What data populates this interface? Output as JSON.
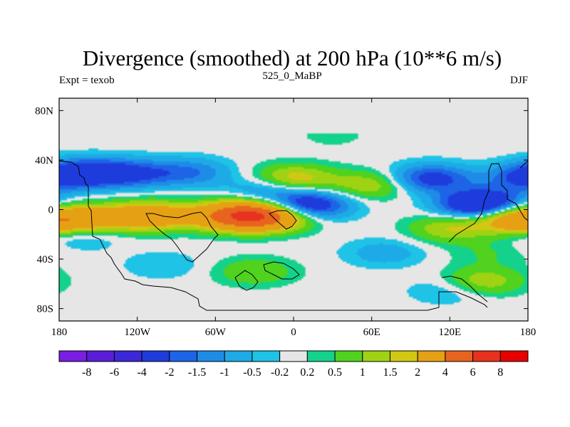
{
  "title": "Divergence (smoothed) at 200 hPa (10**6 m/s)",
  "subtitle_left": "Expt = texob",
  "subtitle_center": "525_0_MaBP",
  "subtitle_right": "DJF",
  "chart_data": {
    "type": "heatmap",
    "projection": "cylindrical equidistant",
    "x_range": [
      -180,
      180
    ],
    "y_range": [
      -90,
      90
    ],
    "x_ticks": [
      {
        "value": -180,
        "label": "180"
      },
      {
        "value": -120,
        "label": "120W"
      },
      {
        "value": -60,
        "label": "60W"
      },
      {
        "value": 0,
        "label": "0"
      },
      {
        "value": 60,
        "label": "60E"
      },
      {
        "value": 120,
        "label": "120E"
      },
      {
        "value": 180,
        "label": "180"
      }
    ],
    "y_ticks": [
      {
        "value": 80,
        "label": "80N"
      },
      {
        "value": 40,
        "label": "40N"
      },
      {
        "value": 0,
        "label": "0"
      },
      {
        "value": -40,
        "label": "40S"
      },
      {
        "value": -80,
        "label": "80S"
      }
    ],
    "contour_levels": [
      -8,
      -6,
      -4,
      -2,
      -1.5,
      -1,
      -0.5,
      -0.2,
      0.2,
      0.5,
      1,
      1.5,
      2,
      4,
      6,
      8
    ],
    "legend_labels": [
      "-8",
      "-6",
      "-4",
      "-2",
      "-1.5",
      "-1",
      "-0.5",
      "-0.2",
      "0.2",
      "0.5",
      "1",
      "1.5",
      "2",
      "4",
      "6",
      "8"
    ],
    "colors": [
      "#7a1ee0",
      "#5a1ed8",
      "#3c28d8",
      "#1e3cdc",
      "#1e64e6",
      "#1e8ce6",
      "#1eaae6",
      "#1ec3e6",
      "#e6e6e6",
      "#14d28c",
      "#50d21e",
      "#a0d214",
      "#d2c814",
      "#e6a014",
      "#e6641e",
      "#e6321e",
      "#e60000"
    ],
    "features": [
      {
        "lon": -160,
        "lat": 30,
        "value": -2.5
      },
      {
        "lon": -125,
        "lat": 29,
        "value": -2
      },
      {
        "lon": -80,
        "lat": 30,
        "value": -1.5
      },
      {
        "lon": -20,
        "lat": 16,
        "value": -1.2
      },
      {
        "lon": 10,
        "lat": 3,
        "value": -3.5
      },
      {
        "lon": 105,
        "lat": 25,
        "value": -2.5
      },
      {
        "lon": 145,
        "lat": 4,
        "value": -4.5
      },
      {
        "lon": 175,
        "lat": 25,
        "value": -1.5
      },
      {
        "lon": -165,
        "lat": -20,
        "value": -1
      },
      {
        "lon": -145,
        "lat": -7,
        "value": 1.5
      },
      {
        "lon": -110,
        "lat": -5,
        "value": 3
      },
      {
        "lon": -60,
        "lat": -5,
        "value": 1.5
      },
      {
        "lon": -35,
        "lat": -5,
        "value": 5
      },
      {
        "lon": -10,
        "lat": -5,
        "value": 2.5
      },
      {
        "lon": 0,
        "lat": 25,
        "value": 2
      },
      {
        "lon": 60,
        "lat": 20,
        "value": 1.5
      },
      {
        "lon": 120,
        "lat": -15,
        "value": 1.5
      },
      {
        "lon": 145,
        "lat": -58,
        "value": 1.5
      },
      {
        "lon": 165,
        "lat": -5,
        "value": 2.5
      },
      {
        "lon": -175,
        "lat": -10,
        "value": 2.5
      },
      {
        "lon": -100,
        "lat": -45,
        "value": -0.5
      },
      {
        "lon": 70,
        "lat": -35,
        "value": -0.8
      },
      {
        "lon": 120,
        "lat": -65,
        "value": -0.7
      },
      {
        "lon": 30,
        "lat": 60,
        "value": 0.3
      },
      {
        "lon": -30,
        "lat": -50,
        "value": 1
      },
      {
        "lon": 150,
        "lat": -35,
        "value": 0.5
      }
    ]
  }
}
